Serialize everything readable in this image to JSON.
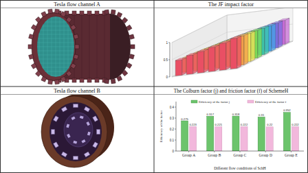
{
  "panels": {
    "a": "Tesla flow channel A",
    "b": "Tesla flow channel B"
  },
  "chart_data": [
    {
      "type": "bar3d",
      "title": "The JF impact factor",
      "values": [
        [
          0.45,
          0.55,
          0.62,
          0.7,
          0.78,
          0.88
        ],
        [
          0.42,
          0.52,
          0.6,
          0.68,
          0.76,
          0.85
        ],
        [
          0.4,
          0.5,
          0.58,
          0.66,
          0.74,
          0.82
        ],
        [
          0.38,
          0.47,
          0.56,
          0.63,
          0.71,
          0.8
        ],
        [
          0.36,
          0.45,
          0.53,
          0.61,
          0.69,
          0.77
        ],
        [
          0.34,
          0.43,
          0.51,
          0.59,
          0.66,
          0.74
        ],
        [
          0.32,
          0.41,
          0.49,
          0.56,
          0.64,
          0.72
        ],
        [
          0.3,
          0.39,
          0.47,
          0.54,
          0.62,
          0.7
        ]
      ],
      "colors": [
        "#e94f64",
        "#f29e4c",
        "#f1e05a",
        "#7ed957",
        "#3fc5a8",
        "#45a3e6",
        "#7b6fe0",
        "#c86dd7"
      ],
      "zlim": [
        0,
        1
      ],
      "zticks": [
        0,
        0.5,
        1
      ],
      "grid": true
    },
    {
      "type": "bar",
      "title": "The Colburn factor (j) and friction factor (f) of SchemeH",
      "categories": [
        "Group A",
        "Group B",
        "Group C",
        "Group D",
        "Group E"
      ],
      "series": [
        {
          "name": "Efficiency of the factor j",
          "color": "#6cc46c",
          "values": [
            0.275,
            0.317,
            0.318,
            0.31,
            0.352
          ]
        },
        {
          "name": "Efficiency of the factor f",
          "color": "#f2b8dc",
          "values": [
            0.223,
            0.221,
            0.222,
            0.22,
            0.222
          ]
        }
      ],
      "ylim": [
        0,
        0.45
      ],
      "yticks": [
        0,
        0.1,
        0.2,
        0.3,
        0.4
      ],
      "x_label": "Different flow conditions of SchH",
      "y_label": "Efficiency of the factor",
      "data_labels": true,
      "legend": "top",
      "grid": false
    }
  ]
}
